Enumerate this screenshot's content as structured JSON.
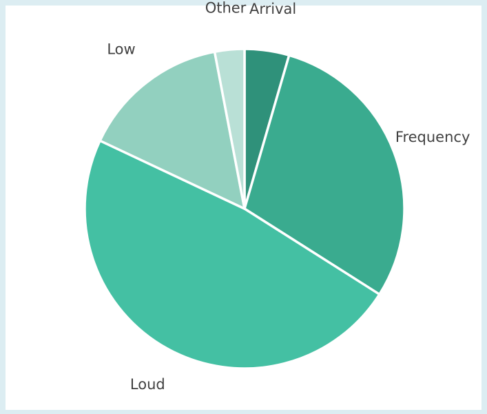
{
  "chart_data": {
    "type": "pie",
    "title": "",
    "legend": "none",
    "slices": [
      {
        "label": "Arrival",
        "value": 4.5,
        "color": "#2f917a"
      },
      {
        "label": "Frequency",
        "value": 29.5,
        "color": "#3aab8f"
      },
      {
        "label": "Loud",
        "value": 48.0,
        "color": "#44c0a3"
      },
      {
        "label": "Low",
        "value": 15.0,
        "color": "#92d0bf"
      },
      {
        "label": "Other",
        "value": 3.0,
        "color": "#b9e0d6"
      }
    ]
  }
}
